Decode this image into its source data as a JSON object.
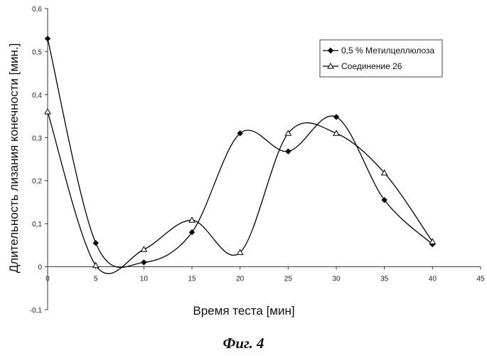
{
  "chart_data": {
    "type": "line",
    "smooth": true,
    "xlabel": "Время теста [мин]",
    "ylabel": "Длительность лизания конечности [мин.]",
    "xlim": [
      0,
      45
    ],
    "ylim": [
      -0.1,
      0.6
    ],
    "x_ticks": [
      "0",
      "5",
      "10",
      "15",
      "20",
      "25",
      "30",
      "35",
      "40",
      "45"
    ],
    "y_ticks": [
      "-0,1",
      "0",
      "0,1",
      "0,2",
      "0,3",
      "0,4",
      "0,5",
      "0,6"
    ],
    "grid": false,
    "legend_position": "top-right",
    "x": [
      0,
      5,
      10,
      15,
      20,
      25,
      30,
      35,
      40
    ],
    "series": [
      {
        "name": "0,5 % Метилцеллюлоза",
        "marker": "diamond",
        "color": "#000000",
        "values": [
          0.53,
          0.055,
          0.01,
          0.08,
          0.31,
          0.268,
          0.348,
          0.155,
          0.052
        ]
      },
      {
        "name": "Соединение 26",
        "marker": "triangle-open",
        "color": "#000000",
        "values": [
          0.36,
          0.003,
          0.04,
          0.108,
          0.033,
          0.31,
          0.31,
          0.218,
          0.058
        ]
      }
    ]
  },
  "caption": "Фиг. 4"
}
